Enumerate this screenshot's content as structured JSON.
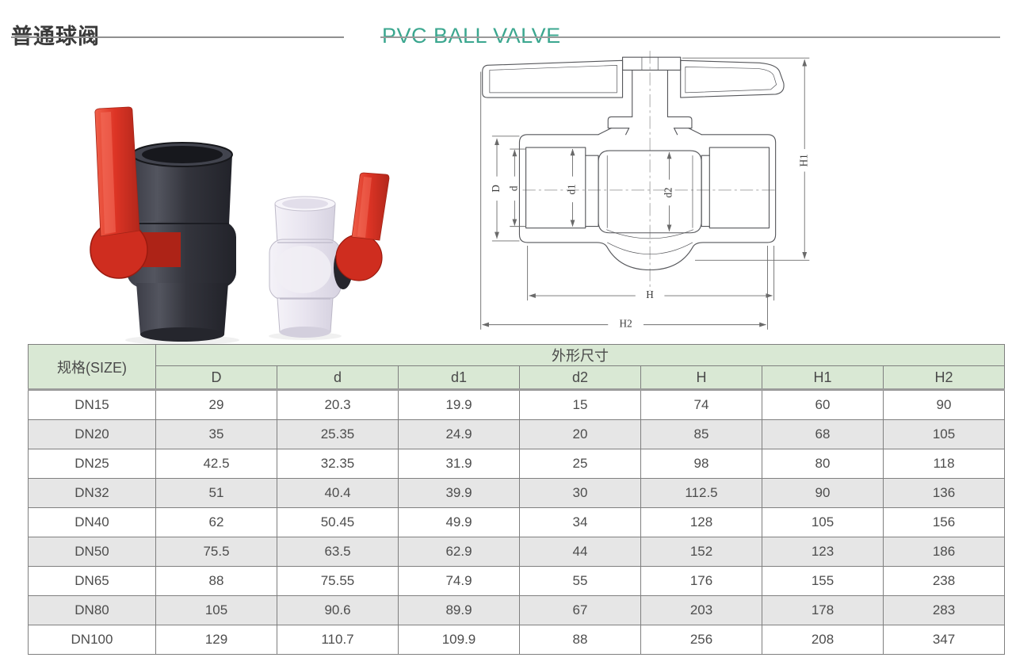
{
  "header": {
    "title_zh": "普通球阀",
    "title_en": "PVC BALL VALVE"
  },
  "photo": {
    "left_valve": "dark-pvc-ball-valve-red-handle",
    "right_valve": "transparent-ball-valve-red-handle"
  },
  "diagram": {
    "labels": {
      "D": "D",
      "d": "d",
      "d1": "d1",
      "d2": "d2",
      "H": "H",
      "H1": "H1",
      "H2": "H2"
    }
  },
  "table": {
    "size_header": "规格(SIZE)",
    "group_header": "外形尺寸",
    "columns": [
      "D",
      "d",
      "d1",
      "d2",
      "H",
      "H1",
      "H2"
    ],
    "rows": [
      {
        "size": "DN15",
        "values": [
          "29",
          "20.3",
          "19.9",
          "15",
          "74",
          "60",
          "90"
        ]
      },
      {
        "size": "DN20",
        "values": [
          "35",
          "25.35",
          "24.9",
          "20",
          "85",
          "68",
          "105"
        ]
      },
      {
        "size": "DN25",
        "values": [
          "42.5",
          "32.35",
          "31.9",
          "25",
          "98",
          "80",
          "118"
        ]
      },
      {
        "size": "DN32",
        "values": [
          "51",
          "40.4",
          "39.9",
          "30",
          "112.5",
          "90",
          "136"
        ]
      },
      {
        "size": "DN40",
        "values": [
          "62",
          "50.45",
          "49.9",
          "34",
          "128",
          "105",
          "156"
        ]
      },
      {
        "size": "DN50",
        "values": [
          "75.5",
          "63.5",
          "62.9",
          "44",
          "152",
          "123",
          "186"
        ]
      },
      {
        "size": "DN65",
        "values": [
          "88",
          "75.55",
          "74.9",
          "55",
          "176",
          "155",
          "238"
        ]
      },
      {
        "size": "DN80",
        "values": [
          "105",
          "90.6",
          "89.9",
          "67",
          "203",
          "178",
          "283"
        ]
      },
      {
        "size": "DN100",
        "values": [
          "129",
          "110.7",
          "109.9",
          "88",
          "256",
          "208",
          "347"
        ]
      }
    ]
  },
  "colors": {
    "accent_green": "#3ba78f",
    "table_header_bg": "#d9e8d4",
    "row_alt_bg": "#e6e6e6",
    "handle_red": "#dd3425",
    "valve_body_dark": "#34353d",
    "drawing_line": "#56575b"
  }
}
